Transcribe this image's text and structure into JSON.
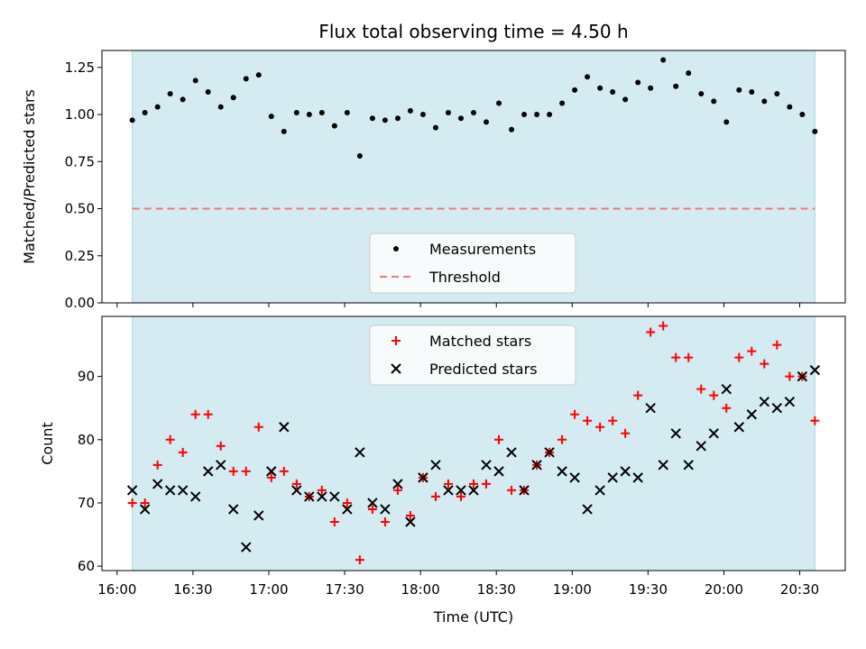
{
  "chart_data": [
    {
      "type": "scatter",
      "title": "Flux total observing time = 4.50 h",
      "xlabel": "",
      "ylabel": "Matched/Predicted stars",
      "xlim": [
        "15:54",
        "20:48"
      ],
      "ylim": [
        0,
        1.34
      ],
      "yticks": [
        "0.00",
        "0.25",
        "0.50",
        "0.75",
        "1.00",
        "1.25"
      ],
      "shaded_span": [
        "16:06",
        "20:36"
      ],
      "shade_color": "#d4ebf1",
      "legend_position": "lower center",
      "series": [
        {
          "name": "Measurements",
          "marker": "dot",
          "color": "#000000",
          "x": [
            "16:06",
            "16:11",
            "16:16",
            "16:21",
            "16:26",
            "16:31",
            "16:36",
            "16:41",
            "16:46",
            "16:51",
            "16:56",
            "17:01",
            "17:06",
            "17:11",
            "17:16",
            "17:21",
            "17:26",
            "17:31",
            "17:36",
            "17:41",
            "17:46",
            "17:51",
            "17:56",
            "18:01",
            "18:06",
            "18:11",
            "18:16",
            "18:21",
            "18:26",
            "18:31",
            "18:36",
            "18:41",
            "18:46",
            "18:51",
            "18:56",
            "19:01",
            "19:06",
            "19:11",
            "19:16",
            "19:21",
            "19:26",
            "19:31",
            "19:36",
            "19:41",
            "19:46",
            "19:51",
            "19:56",
            "20:01",
            "20:06",
            "20:11",
            "20:16",
            "20:21",
            "20:26",
            "20:31",
            "20:36"
          ],
          "y": [
            0.97,
            1.01,
            1.04,
            1.11,
            1.08,
            1.18,
            1.12,
            1.04,
            1.09,
            1.19,
            1.21,
            0.99,
            0.91,
            1.01,
            1.0,
            1.01,
            0.94,
            1.01,
            0.78,
            0.98,
            0.97,
            0.98,
            1.02,
            1.0,
            0.93,
            1.01,
            0.98,
            1.01,
            0.96,
            1.06,
            0.92,
            1.0,
            1.0,
            1.0,
            1.06,
            1.13,
            1.2,
            1.14,
            1.12,
            1.08,
            1.17,
            1.14,
            1.29,
            1.15,
            1.22,
            1.11,
            1.07,
            0.96,
            1.13,
            1.12,
            1.07,
            1.11,
            1.04,
            1.0,
            0.91
          ]
        },
        {
          "name": "Threshold",
          "type": "line",
          "style": "dashed",
          "color": "#f07878",
          "x": [
            "16:06",
            "20:36"
          ],
          "y": [
            0.5,
            0.5
          ]
        }
      ]
    },
    {
      "type": "scatter",
      "title": "",
      "xlabel": "Time (UTC)",
      "ylabel": "Count",
      "xlim": [
        "15:54",
        "20:48"
      ],
      "ylim": [
        59.3,
        99.5
      ],
      "xticks": [
        "16:00",
        "16:30",
        "17:00",
        "17:30",
        "18:00",
        "18:30",
        "19:00",
        "19:30",
        "20:00",
        "20:30"
      ],
      "yticks": [
        "60",
        "70",
        "80",
        "90"
      ],
      "shaded_span": [
        "16:06",
        "20:36"
      ],
      "shade_color": "#d4ebf1",
      "legend_position": "upper center",
      "series": [
        {
          "name": "Matched stars",
          "marker": "plus",
          "color": "#ff0000",
          "x": [
            "16:06",
            "16:11",
            "16:16",
            "16:21",
            "16:26",
            "16:31",
            "16:36",
            "16:41",
            "16:46",
            "16:51",
            "16:56",
            "17:01",
            "17:06",
            "17:11",
            "17:16",
            "17:21",
            "17:26",
            "17:31",
            "17:36",
            "17:41",
            "17:46",
            "17:51",
            "17:56",
            "18:01",
            "18:06",
            "18:11",
            "18:16",
            "18:21",
            "18:26",
            "18:31",
            "18:36",
            "18:41",
            "18:46",
            "18:51",
            "18:56",
            "19:01",
            "19:06",
            "19:11",
            "19:16",
            "19:21",
            "19:26",
            "19:31",
            "19:36",
            "19:41",
            "19:46",
            "19:51",
            "19:56",
            "20:01",
            "20:06",
            "20:11",
            "20:16",
            "20:21",
            "20:26",
            "20:31",
            "20:36"
          ],
          "y": [
            70,
            70,
            76,
            80,
            78,
            84,
            84,
            79,
            75,
            75,
            82,
            74,
            75,
            73,
            71,
            72,
            67,
            70,
            61,
            69,
            67,
            72,
            68,
            74,
            71,
            73,
            71,
            73,
            73,
            80,
            72,
            72,
            76,
            78,
            80,
            84,
            83,
            82,
            83,
            81,
            87,
            97,
            98,
            93,
            93,
            88,
            87,
            85,
            93,
            94,
            92,
            95,
            90,
            90,
            83
          ]
        },
        {
          "name": "Predicted stars",
          "marker": "x",
          "color": "#000000",
          "x": [
            "16:06",
            "16:11",
            "16:16",
            "16:21",
            "16:26",
            "16:31",
            "16:36",
            "16:41",
            "16:46",
            "16:51",
            "16:56",
            "17:01",
            "17:06",
            "17:11",
            "17:16",
            "17:21",
            "17:26",
            "17:31",
            "17:36",
            "17:41",
            "17:46",
            "17:51",
            "17:56",
            "18:01",
            "18:06",
            "18:11",
            "18:16",
            "18:21",
            "18:26",
            "18:31",
            "18:36",
            "18:41",
            "18:46",
            "18:51",
            "18:56",
            "19:01",
            "19:06",
            "19:11",
            "19:16",
            "19:21",
            "19:26",
            "19:31",
            "19:36",
            "19:41",
            "19:46",
            "19:51",
            "19:56",
            "20:01",
            "20:06",
            "20:11",
            "20:16",
            "20:21",
            "20:26",
            "20:31",
            "20:36"
          ],
          "y": [
            72,
            69,
            73,
            72,
            72,
            71,
            75,
            76,
            69,
            63,
            68,
            75,
            82,
            72,
            71,
            71,
            71,
            69,
            78,
            70,
            69,
            73,
            67,
            74,
            76,
            72,
            72,
            72,
            76,
            75,
            78,
            72,
            76,
            78,
            75,
            74,
            69,
            72,
            74,
            75,
            74,
            85,
            76,
            81,
            76,
            79,
            81,
            88,
            82,
            84,
            86,
            85,
            86,
            90,
            91
          ]
        }
      ]
    }
  ]
}
